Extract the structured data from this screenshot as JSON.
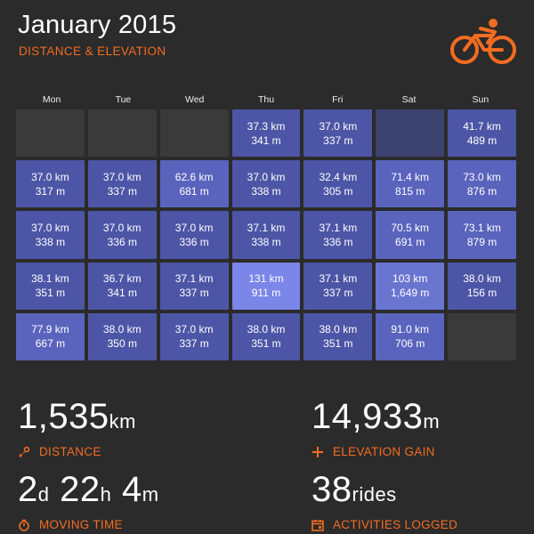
{
  "header": {
    "title": "January 2015",
    "subtitle": "DISTANCE & ELEVATION",
    "logo_icon": "cyclist-icon",
    "accent_color": "#f36c21"
  },
  "days": [
    "Mon",
    "Tue",
    "Wed",
    "Thu",
    "Fri",
    "Sat",
    "Sun"
  ],
  "calendar": [
    [
      null,
      null,
      null,
      {
        "km": "37.3 km",
        "m": "341 m",
        "lvl": 1
      },
      {
        "km": "37.0 km",
        "m": "337 m",
        "lvl": 1
      },
      {
        "dim": true
      },
      {
        "km": "41.7 km",
        "m": "489 m",
        "lvl": 1
      }
    ],
    [
      {
        "km": "37.0 km",
        "m": "317 m",
        "lvl": 1
      },
      {
        "km": "37.0 km",
        "m": "337 m",
        "lvl": 1
      },
      {
        "km": "62.6 km",
        "m": "681 m",
        "lvl": 2
      },
      {
        "km": "37.0 km",
        "m": "338 m",
        "lvl": 1
      },
      {
        "km": "32.4 km",
        "m": "305 m",
        "lvl": 1
      },
      {
        "km": "71.4 km",
        "m": "815 m",
        "lvl": 2
      },
      {
        "km": "73.0 km",
        "m": "876 m",
        "lvl": 2
      }
    ],
    [
      {
        "km": "37.0 km",
        "m": "338 m",
        "lvl": 1
      },
      {
        "km": "37.0 km",
        "m": "336 m",
        "lvl": 1
      },
      {
        "km": "37.0 km",
        "m": "336 m",
        "lvl": 1
      },
      {
        "km": "37.1 km",
        "m": "338 m",
        "lvl": 1
      },
      {
        "km": "37.1 km",
        "m": "336 m",
        "lvl": 1
      },
      {
        "km": "70.5 km",
        "m": "691 m",
        "lvl": 2
      },
      {
        "km": "73.1 km",
        "m": "879 m",
        "lvl": 2
      }
    ],
    [
      {
        "km": "38.1 km",
        "m": "351 m",
        "lvl": 1
      },
      {
        "km": "36.7 km",
        "m": "341 m",
        "lvl": 1
      },
      {
        "km": "37.1 km",
        "m": "337 m",
        "lvl": 1
      },
      {
        "km": "131 km",
        "m": "911 m",
        "lvl": 4
      },
      {
        "km": "37.1 km",
        "m": "337 m",
        "lvl": 1
      },
      {
        "km": "103 km",
        "m": "1,649 m",
        "lvl": 3
      },
      {
        "km": "38.0 km",
        "m": "156 m",
        "lvl": 1
      }
    ],
    [
      {
        "km": "77.9 km",
        "m": "667 m",
        "lvl": 2
      },
      {
        "km": "38.0 km",
        "m": "350 m",
        "lvl": 1
      },
      {
        "km": "37.0 km",
        "m": "337 m",
        "lvl": 1
      },
      {
        "km": "38.0 km",
        "m": "351 m",
        "lvl": 1
      },
      {
        "km": "38.0 km",
        "m": "351 m",
        "lvl": 1
      },
      {
        "km": "91.0 km",
        "m": "706 m",
        "lvl": 2
      },
      null
    ]
  ],
  "stats": {
    "distance": {
      "value": "1,535",
      "unit": "km",
      "label": "DISTANCE",
      "icon": "route-pin-icon"
    },
    "elevation": {
      "value": "14,933",
      "unit": "m",
      "label": "ELEVATION GAIN",
      "icon": "plus-icon"
    },
    "moving": {
      "d": "2",
      "d_unit": "d",
      "h": "22",
      "h_unit": "h",
      "m": "4",
      "m_unit": "m",
      "label": "MOVING TIME",
      "icon": "stopwatch-icon"
    },
    "activities": {
      "value": "38",
      "unit": "rides",
      "label": "ACTIVITIES LOGGED",
      "icon": "calendar-icon"
    }
  }
}
